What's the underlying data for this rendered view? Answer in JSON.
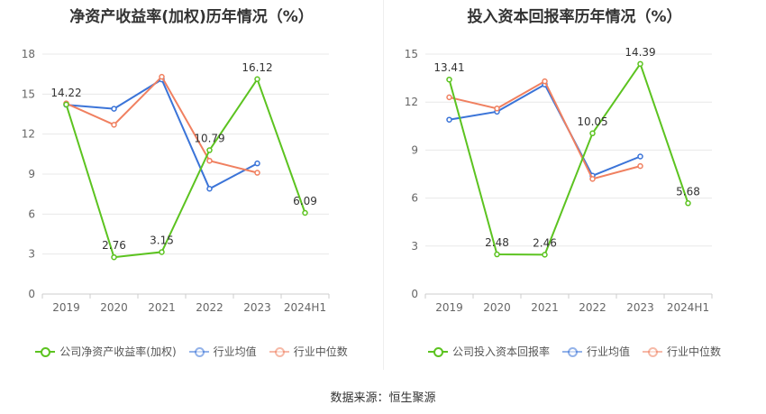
{
  "source_text": "数据来源：恒生聚源",
  "chart_data": [
    {
      "type": "line",
      "title": "净资产收益率(加权)历年情况（%）",
      "categories": [
        "2019",
        "2020",
        "2021",
        "2022",
        "2023",
        "2024H1"
      ],
      "ylim": [
        0,
        18
      ],
      "yticks": [
        0,
        3,
        6,
        9,
        12,
        15,
        18
      ],
      "grid": true,
      "legend_position": "bottom",
      "series": [
        {
          "name": "公司净资产收益率(加权)",
          "color": "#5cc320",
          "values": [
            14.22,
            2.76,
            3.15,
            10.79,
            16.12,
            6.09
          ],
          "labels": true
        },
        {
          "name": "行业均值",
          "color": "#3b74d8",
          "values": [
            14.2,
            13.9,
            16.1,
            7.9,
            9.8,
            null
          ],
          "labels": false
        },
        {
          "name": "行业中位数",
          "color": "#f08060",
          "values": [
            14.3,
            12.7,
            16.3,
            10.0,
            9.1,
            null
          ],
          "labels": false
        }
      ]
    },
    {
      "type": "line",
      "title": "投入资本回报率历年情况（%）",
      "categories": [
        "2019",
        "2020",
        "2021",
        "2022",
        "2023",
        "2024H1"
      ],
      "ylim": [
        0,
        15
      ],
      "yticks": [
        0,
        3,
        6,
        9,
        12,
        15
      ],
      "grid": true,
      "legend_position": "bottom",
      "series": [
        {
          "name": "公司投入资本回报率",
          "color": "#5cc320",
          "values": [
            13.41,
            2.48,
            2.46,
            10.05,
            14.39,
            5.68
          ],
          "labels": true
        },
        {
          "name": "行业均值",
          "color": "#3b74d8",
          "values": [
            10.9,
            11.4,
            13.1,
            7.4,
            8.6,
            null
          ],
          "labels": false
        },
        {
          "name": "行业中位数",
          "color": "#f08060",
          "values": [
            12.3,
            11.6,
            13.3,
            7.2,
            8.0,
            null
          ],
          "labels": false
        }
      ]
    }
  ]
}
